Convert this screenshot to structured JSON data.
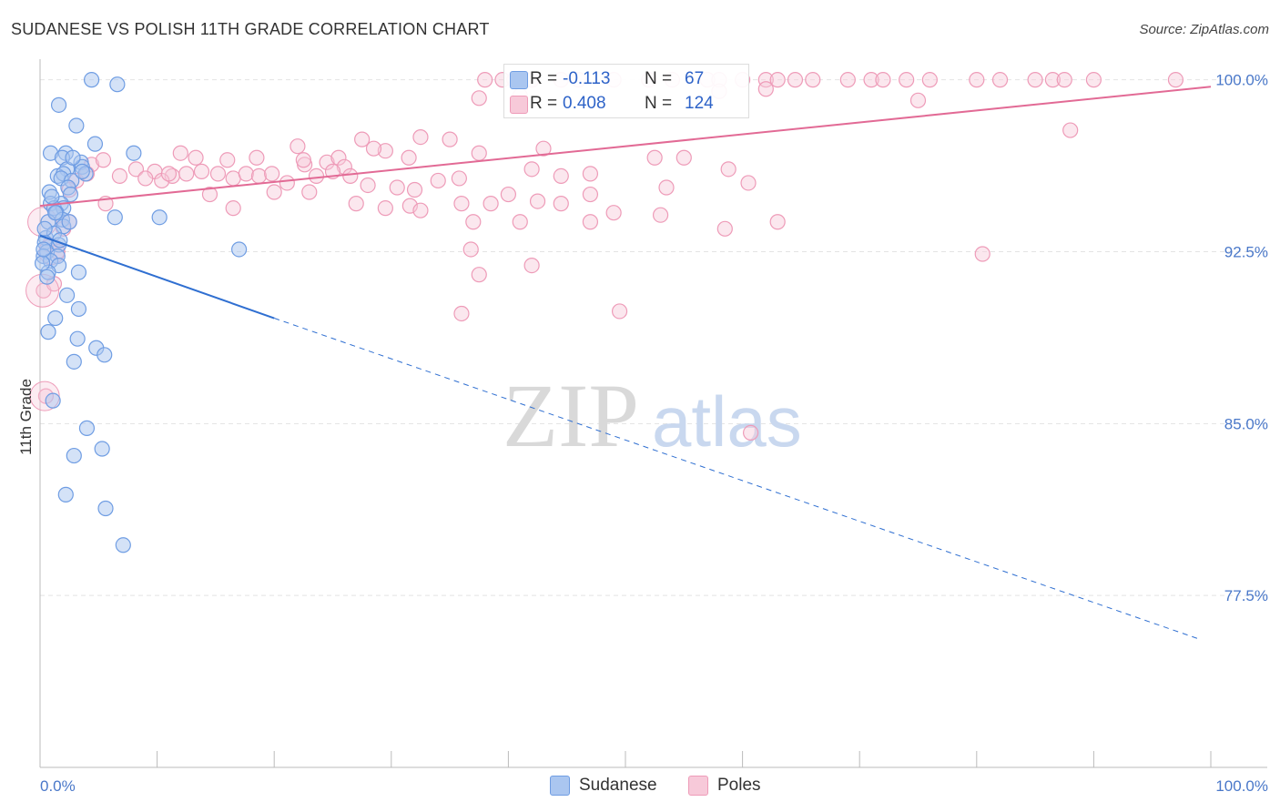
{
  "title": "SUDANESE VS POLISH 11TH GRADE CORRELATION CHART",
  "source": "Source: ZipAtlas.com",
  "watermark": {
    "zip": "ZIP",
    "atlas": "atlas"
  },
  "colors": {
    "sudanese": "#6f9de3",
    "sudanese_fill": "#aac6f0",
    "poles": "#ee9bb8",
    "poles_fill": "#f7c9d9",
    "sudanese_line": "#2f6fd1",
    "poles_line": "#e26a95",
    "tick": "#4a78c9"
  },
  "legend": {
    "rows": [
      {
        "series": "Sudanese",
        "r_label": "R =",
        "r_value": "-0.113",
        "n_label": "N =",
        "n_value": "67"
      },
      {
        "series": "Poles",
        "r_label": "R =",
        "r_value": "0.408",
        "n_label": "N =",
        "n_value": "124"
      }
    ]
  },
  "bottom_legend": {
    "items": [
      "Sudanese",
      "Poles"
    ]
  },
  "chart_data": {
    "type": "scatter",
    "title": "SUDANESE VS POLISH 11TH GRADE CORRELATION CHART",
    "xlabel": "",
    "ylabel": "11th Grade",
    "xlim": [
      0,
      100
    ],
    "ylim": [
      70,
      100.9
    ],
    "x_tick_labels": [
      "0.0%",
      "100.0%"
    ],
    "y_ticks": [
      77.5,
      85.0,
      92.5,
      100.0
    ],
    "y_tick_labels": [
      "77.5%",
      "85.0%",
      "92.5%",
      "100.0%"
    ],
    "series": [
      {
        "name": "Sudanese",
        "trend": {
          "x0": 0,
          "y0": 93.2,
          "x1": 20,
          "y1": 89.6,
          "dash_to_x": 99,
          "dash_to_y": 75.6
        },
        "points": [
          [
            4.4,
            100
          ],
          [
            6.6,
            99.8
          ],
          [
            1.6,
            98.9
          ],
          [
            3.1,
            98.0
          ],
          [
            4.7,
            97.2
          ],
          [
            8,
            96.8
          ],
          [
            0.9,
            96.8
          ],
          [
            2.2,
            96.8
          ],
          [
            1.9,
            96.6
          ],
          [
            3.5,
            96.4
          ],
          [
            2.3,
            96.1
          ],
          [
            3.6,
            96.2
          ],
          [
            1.5,
            95.8
          ],
          [
            2.0,
            95.9
          ],
          [
            1.8,
            95.7
          ],
          [
            2.7,
            95.6
          ],
          [
            2.4,
            95.3
          ],
          [
            0.8,
            95.1
          ],
          [
            2.6,
            95.0
          ],
          [
            0.9,
            94.6
          ],
          [
            1.8,
            94.6
          ],
          [
            1.2,
            94.4
          ],
          [
            2.0,
            94.4
          ],
          [
            1.4,
            94.2
          ],
          [
            6.4,
            94.0
          ],
          [
            10.2,
            94.0
          ],
          [
            1.9,
            93.9
          ],
          [
            0.7,
            93.8
          ],
          [
            2.0,
            93.6
          ],
          [
            0.5,
            93.1
          ],
          [
            1.2,
            93.3
          ],
          [
            0.4,
            92.9
          ],
          [
            0.6,
            92.5
          ],
          [
            1.6,
            92.8
          ],
          [
            0.3,
            92.3
          ],
          [
            1.5,
            92.3
          ],
          [
            0.9,
            92.1
          ],
          [
            17.0,
            92.6
          ],
          [
            1.6,
            91.9
          ],
          [
            0.7,
            91.6
          ],
          [
            3.3,
            91.6
          ],
          [
            2.3,
            90.6
          ],
          [
            3.3,
            90.0
          ],
          [
            1.3,
            89.6
          ],
          [
            0.7,
            89.0
          ],
          [
            3.2,
            88.7
          ],
          [
            4.8,
            88.3
          ],
          [
            5.5,
            88.0
          ],
          [
            2.9,
            87.7
          ],
          [
            1.1,
            86.0
          ],
          [
            4.0,
            84.8
          ],
          [
            2.9,
            83.6
          ],
          [
            5.3,
            83.9
          ],
          [
            2.2,
            81.9
          ],
          [
            5.6,
            81.3
          ],
          [
            7.1,
            79.7
          ],
          [
            0.2,
            92.0
          ],
          [
            0.4,
            93.5
          ],
          [
            1.0,
            94.9
          ],
          [
            2.8,
            96.6
          ],
          [
            3.9,
            95.9
          ],
          [
            0.6,
            91.4
          ],
          [
            1.7,
            93.0
          ],
          [
            2.5,
            93.8
          ],
          [
            0.3,
            92.6
          ],
          [
            1.3,
            94.2
          ],
          [
            3.6,
            96.0
          ]
        ]
      },
      {
        "name": "Poles",
        "trend": {
          "x0": 0,
          "y0": 94.5,
          "x1": 100,
          "y1": 99.7
        },
        "points": [
          [
            38,
            100
          ],
          [
            39.5,
            100
          ],
          [
            40.5,
            100
          ],
          [
            42,
            100
          ],
          [
            44.5,
            100
          ],
          [
            46,
            100
          ],
          [
            49,
            100
          ],
          [
            52,
            100
          ],
          [
            54,
            100
          ],
          [
            57,
            100
          ],
          [
            58,
            100
          ],
          [
            60,
            100
          ],
          [
            62,
            100
          ],
          [
            63,
            100
          ],
          [
            64.5,
            100
          ],
          [
            66,
            100
          ],
          [
            69,
            100
          ],
          [
            71,
            100
          ],
          [
            72,
            100
          ],
          [
            74,
            100
          ],
          [
            76,
            100
          ],
          [
            80,
            100
          ],
          [
            82,
            100
          ],
          [
            85,
            100
          ],
          [
            86.5,
            100
          ],
          [
            87.5,
            100
          ],
          [
            90,
            100
          ],
          [
            97,
            100
          ],
          [
            37.5,
            99.2
          ],
          [
            41,
            99.3
          ],
          [
            58,
            99.5
          ],
          [
            62,
            99.6
          ],
          [
            75,
            99.1
          ],
          [
            88,
            97.8
          ],
          [
            22,
            97.1
          ],
          [
            27.5,
            97.4
          ],
          [
            29.5,
            96.9
          ],
          [
            28.5,
            97.0
          ],
          [
            32.5,
            97.5
          ],
          [
            31.5,
            96.6
          ],
          [
            35,
            97.4
          ],
          [
            37.5,
            96.8
          ],
          [
            43,
            97.0
          ],
          [
            52.5,
            96.6
          ],
          [
            55,
            96.6
          ],
          [
            12,
            96.8
          ],
          [
            13.3,
            96.6
          ],
          [
            16,
            96.5
          ],
          [
            18.5,
            96.6
          ],
          [
            22.6,
            96.3
          ],
          [
            22.5,
            96.5
          ],
          [
            24.5,
            96.4
          ],
          [
            25.5,
            96.6
          ],
          [
            26,
            96.2
          ],
          [
            9.8,
            96.0
          ],
          [
            11.3,
            95.8
          ],
          [
            12.5,
            95.9
          ],
          [
            13.8,
            96.0
          ],
          [
            15.2,
            95.9
          ],
          [
            16.5,
            95.7
          ],
          [
            17.6,
            95.9
          ],
          [
            18.7,
            95.8
          ],
          [
            19.8,
            95.9
          ],
          [
            21.1,
            95.5
          ],
          [
            23.6,
            95.8
          ],
          [
            25.0,
            96.0
          ],
          [
            26.5,
            95.8
          ],
          [
            28.0,
            95.4
          ],
          [
            30.5,
            95.3
          ],
          [
            32.0,
            95.2
          ],
          [
            34.0,
            95.6
          ],
          [
            35.8,
            95.7
          ],
          [
            42.0,
            96.1
          ],
          [
            44.5,
            95.8
          ],
          [
            47.0,
            95.9
          ],
          [
            58.8,
            96.1
          ],
          [
            60.5,
            95.5
          ],
          [
            53.5,
            95.3
          ],
          [
            4.4,
            96.3
          ],
          [
            5.4,
            96.5
          ],
          [
            6.8,
            95.8
          ],
          [
            8.2,
            96.1
          ],
          [
            9.0,
            95.7
          ],
          [
            10.4,
            95.6
          ],
          [
            11.0,
            95.9
          ],
          [
            3.1,
            95.6
          ],
          [
            4.0,
            95.9
          ],
          [
            2.5,
            95.2
          ],
          [
            5.6,
            94.6
          ],
          [
            14.5,
            95.0
          ],
          [
            20,
            95.1
          ],
          [
            23.0,
            95.1
          ],
          [
            27.0,
            94.6
          ],
          [
            29.5,
            94.4
          ],
          [
            31.6,
            94.5
          ],
          [
            36.0,
            94.6
          ],
          [
            38.5,
            94.6
          ],
          [
            40,
            95.0
          ],
          [
            42.5,
            94.7
          ],
          [
            44.5,
            94.6
          ],
          [
            47.0,
            95.0
          ],
          [
            49.0,
            94.2
          ],
          [
            53.0,
            94.1
          ],
          [
            16.5,
            94.4
          ],
          [
            32.5,
            94.3
          ],
          [
            37.0,
            93.8
          ],
          [
            41.0,
            93.8
          ],
          [
            47.0,
            93.8
          ],
          [
            63.0,
            93.8
          ],
          [
            58.5,
            93.5
          ],
          [
            2.0,
            93.5
          ],
          [
            2.5,
            93.8
          ],
          [
            0.8,
            92.8
          ],
          [
            1.5,
            92.5
          ],
          [
            36.8,
            92.6
          ],
          [
            37.5,
            91.5
          ],
          [
            42,
            91.9
          ],
          [
            36.0,
            89.8
          ],
          [
            49.5,
            89.9
          ],
          [
            60.7,
            84.6
          ],
          [
            80.5,
            92.4
          ],
          [
            0.5,
            86.2
          ],
          [
            0.3,
            90.8
          ],
          [
            1.2,
            91.1
          ]
        ]
      }
    ]
  }
}
